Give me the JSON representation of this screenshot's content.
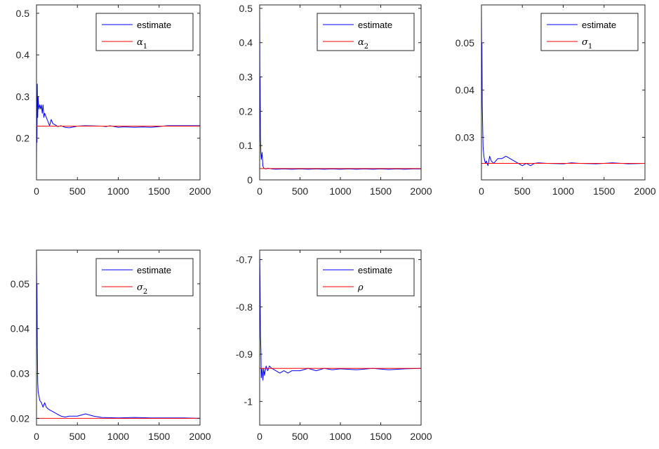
{
  "chart_data": [
    {
      "type": "line",
      "xlim": [
        0,
        2000
      ],
      "ylim": [
        0.1,
        0.52
      ],
      "xticks": [
        0,
        500,
        1000,
        1500,
        2000
      ],
      "xtick_labels": [
        "0",
        "500",
        "1000",
        "1500",
        "2000"
      ],
      "yticks": [
        0.2,
        0.3,
        0.4,
        0.5
      ],
      "ytick_labels": [
        "0.2",
        "0.3",
        "0.4",
        "0.5"
      ],
      "legend": {
        "position": "top-right",
        "entries": [
          {
            "label": "estimate",
            "color": "#0000ff"
          },
          {
            "label": "α",
            "sub": "1",
            "color": "#ff0000"
          }
        ]
      },
      "series": [
        {
          "name": "estimate",
          "color": "#0000ff",
          "x": [
            0,
            3,
            6,
            10,
            15,
            20,
            25,
            30,
            40,
            50,
            60,
            70,
            80,
            90,
            100,
            120,
            140,
            160,
            180,
            200,
            230,
            260,
            300,
            350,
            400,
            450,
            500,
            600,
            800,
            850,
            900,
            1000,
            1050,
            1100,
            1200,
            1300,
            1400,
            1500,
            1600,
            1800,
            2000
          ],
          "y": [
            0.115,
            0.28,
            0.19,
            0.33,
            0.25,
            0.3,
            0.28,
            0.27,
            0.28,
            0.27,
            0.28,
            0.26,
            0.28,
            0.25,
            0.26,
            0.25,
            0.24,
            0.23,
            0.245,
            0.235,
            0.232,
            0.228,
            0.23,
            0.226,
            0.225,
            0.227,
            0.229,
            0.23,
            0.229,
            0.228,
            0.23,
            0.226,
            0.227,
            0.227,
            0.226,
            0.227,
            0.226,
            0.228,
            0.23,
            0.23,
            0.23
          ]
        },
        {
          "name": "α1",
          "color": "#ff0000",
          "x": [
            0,
            2000
          ],
          "y": [
            0.229,
            0.229
          ]
        }
      ]
    },
    {
      "type": "line",
      "xlim": [
        0,
        2000
      ],
      "ylim": [
        0,
        0.51
      ],
      "xticks": [
        0,
        500,
        1000,
        1500,
        2000
      ],
      "xtick_labels": [
        "0",
        "500",
        "1000",
        "1500",
        "2000"
      ],
      "yticks": [
        0,
        0.1,
        0.2,
        0.3,
        0.4,
        0.5
      ],
      "ytick_labels": [
        "0",
        "0.1",
        "0.2",
        "0.3",
        "0.4",
        "0.5"
      ],
      "legend": {
        "position": "top-right",
        "entries": [
          {
            "label": "estimate",
            "color": "#0000ff"
          },
          {
            "label": "α",
            "sub": "2",
            "color": "#ff0000"
          }
        ]
      },
      "series": [
        {
          "name": "estimate",
          "color": "#0000ff",
          "x": [
            0,
            3,
            6,
            10,
            15,
            20,
            30,
            40,
            50,
            60,
            80,
            100,
            150,
            200,
            300,
            400,
            500,
            600,
            700,
            800,
            900,
            1000,
            1100,
            1200,
            1300,
            1400,
            1500,
            1600,
            1700,
            1800,
            1900,
            2000
          ],
          "y": [
            0.51,
            0.28,
            0.3,
            0.12,
            0.08,
            0.06,
            0.08,
            0.04,
            0.035,
            0.033,
            0.032,
            0.034,
            0.032,
            0.031,
            0.032,
            0.031,
            0.032,
            0.031,
            0.032,
            0.031,
            0.032,
            0.031,
            0.032,
            0.031,
            0.032,
            0.031,
            0.032,
            0.031,
            0.032,
            0.031,
            0.032,
            0.032
          ]
        },
        {
          "name": "α2",
          "color": "#ff0000",
          "x": [
            0,
            2000
          ],
          "y": [
            0.033,
            0.033
          ]
        }
      ]
    },
    {
      "type": "line",
      "xlim": [
        0,
        2000
      ],
      "ylim": [
        0.021,
        0.058
      ],
      "xticks": [
        0,
        500,
        1000,
        1500,
        2000
      ],
      "xtick_labels": [
        "0",
        "500",
        "1000",
        "1500",
        "2000"
      ],
      "yticks": [
        0.03,
        0.04,
        0.05
      ],
      "ytick_labels": [
        "0.03",
        "0.04",
        "0.05"
      ],
      "legend": {
        "position": "top-right",
        "entries": [
          {
            "label": "estimate",
            "color": "#0000ff"
          },
          {
            "label": "σ",
            "sub": "1",
            "color": "#ff0000"
          }
        ]
      },
      "series": [
        {
          "name": "estimate",
          "color": "#0000ff",
          "x": [
            0,
            3,
            6,
            10,
            15,
            20,
            25,
            30,
            40,
            50,
            60,
            80,
            100,
            120,
            150,
            200,
            250,
            300,
            350,
            400,
            450,
            500,
            550,
            600,
            650,
            700,
            800,
            1000,
            1100,
            1200,
            1400,
            1500,
            1600,
            1800,
            2000
          ],
          "y": [
            0.058,
            0.045,
            0.05,
            0.037,
            0.032,
            0.028,
            0.027,
            0.026,
            0.025,
            0.0245,
            0.025,
            0.024,
            0.026,
            0.025,
            0.0245,
            0.0255,
            0.0255,
            0.026,
            0.0255,
            0.025,
            0.0245,
            0.024,
            0.0245,
            0.024,
            0.0245,
            0.0246,
            0.0245,
            0.0244,
            0.0246,
            0.0245,
            0.0244,
            0.0245,
            0.0246,
            0.0244,
            0.0245
          ]
        },
        {
          "name": "σ1",
          "color": "#ff0000",
          "x": [
            0,
            2000
          ],
          "y": [
            0.0245,
            0.0245
          ]
        }
      ]
    },
    {
      "type": "line",
      "xlim": [
        0,
        2000
      ],
      "ylim": [
        0.0185,
        0.0575
      ],
      "xticks": [
        0,
        500,
        1000,
        1500,
        2000
      ],
      "xtick_labels": [
        "0",
        "500",
        "1000",
        "1500",
        "2000"
      ],
      "yticks": [
        0.02,
        0.03,
        0.04,
        0.05
      ],
      "ytick_labels": [
        "0.02",
        "0.03",
        "0.04",
        "0.05"
      ],
      "legend": {
        "position": "top-right",
        "entries": [
          {
            "label": "estimate",
            "color": "#0000ff"
          },
          {
            "label": "σ",
            "sub": "2",
            "color": "#ff0000"
          }
        ]
      },
      "series": [
        {
          "name": "estimate",
          "color": "#0000ff",
          "x": [
            0,
            3,
            6,
            10,
            15,
            20,
            30,
            40,
            60,
            80,
            100,
            120,
            150,
            200,
            250,
            300,
            350,
            400,
            500,
            600,
            700,
            800,
            1000,
            1200,
            1400,
            1600,
            1800,
            2000
          ],
          "y": [
            0.0575,
            0.045,
            0.05,
            0.036,
            0.028,
            0.026,
            0.025,
            0.024,
            0.0235,
            0.0225,
            0.0235,
            0.0225,
            0.022,
            0.0215,
            0.021,
            0.0205,
            0.0203,
            0.0205,
            0.0205,
            0.021,
            0.0205,
            0.0202,
            0.0201,
            0.0202,
            0.0201,
            0.0201,
            0.0201,
            0.02
          ]
        },
        {
          "name": "σ2",
          "color": "#ff0000",
          "x": [
            0,
            2000
          ],
          "y": [
            0.02,
            0.02
          ]
        }
      ]
    },
    {
      "type": "line",
      "xlim": [
        0,
        2000
      ],
      "ylim": [
        -1.05,
        -0.68
      ],
      "xticks": [
        0,
        500,
        1000,
        1500,
        2000
      ],
      "xtick_labels": [
        "0",
        "500",
        "1000",
        "1500",
        "2000"
      ],
      "yticks": [
        -1,
        -0.9,
        -0.8,
        -0.7
      ],
      "ytick_labels": [
        "-1",
        "-0.9",
        "-0.8",
        "-0.7"
      ],
      "legend": {
        "position": "top-right",
        "entries": [
          {
            "label": "estimate",
            "color": "#0000ff"
          },
          {
            "label": "ρ",
            "sub": "",
            "color": "#ff0000"
          }
        ]
      },
      "series": [
        {
          "name": "estimate",
          "color": "#0000ff",
          "x": [
            0,
            5,
            10,
            15,
            20,
            30,
            40,
            50,
            60,
            80,
            100,
            120,
            150,
            200,
            250,
            300,
            350,
            400,
            500,
            600,
            700,
            800,
            900,
            1000,
            1200,
            1400,
            1600,
            1800,
            2000
          ],
          "y": [
            -0.68,
            -0.75,
            -0.86,
            -0.89,
            -0.95,
            -0.93,
            -0.955,
            -0.93,
            -0.945,
            -0.925,
            -0.935,
            -0.925,
            -0.93,
            -0.935,
            -0.94,
            -0.935,
            -0.94,
            -0.935,
            -0.935,
            -0.93,
            -0.935,
            -0.93,
            -0.933,
            -0.931,
            -0.933,
            -0.93,
            -0.933,
            -0.931,
            -0.93
          ]
        },
        {
          "name": "ρ",
          "color": "#ff0000",
          "x": [
            0,
            2000
          ],
          "y": [
            -0.93,
            -0.93
          ]
        }
      ]
    }
  ]
}
